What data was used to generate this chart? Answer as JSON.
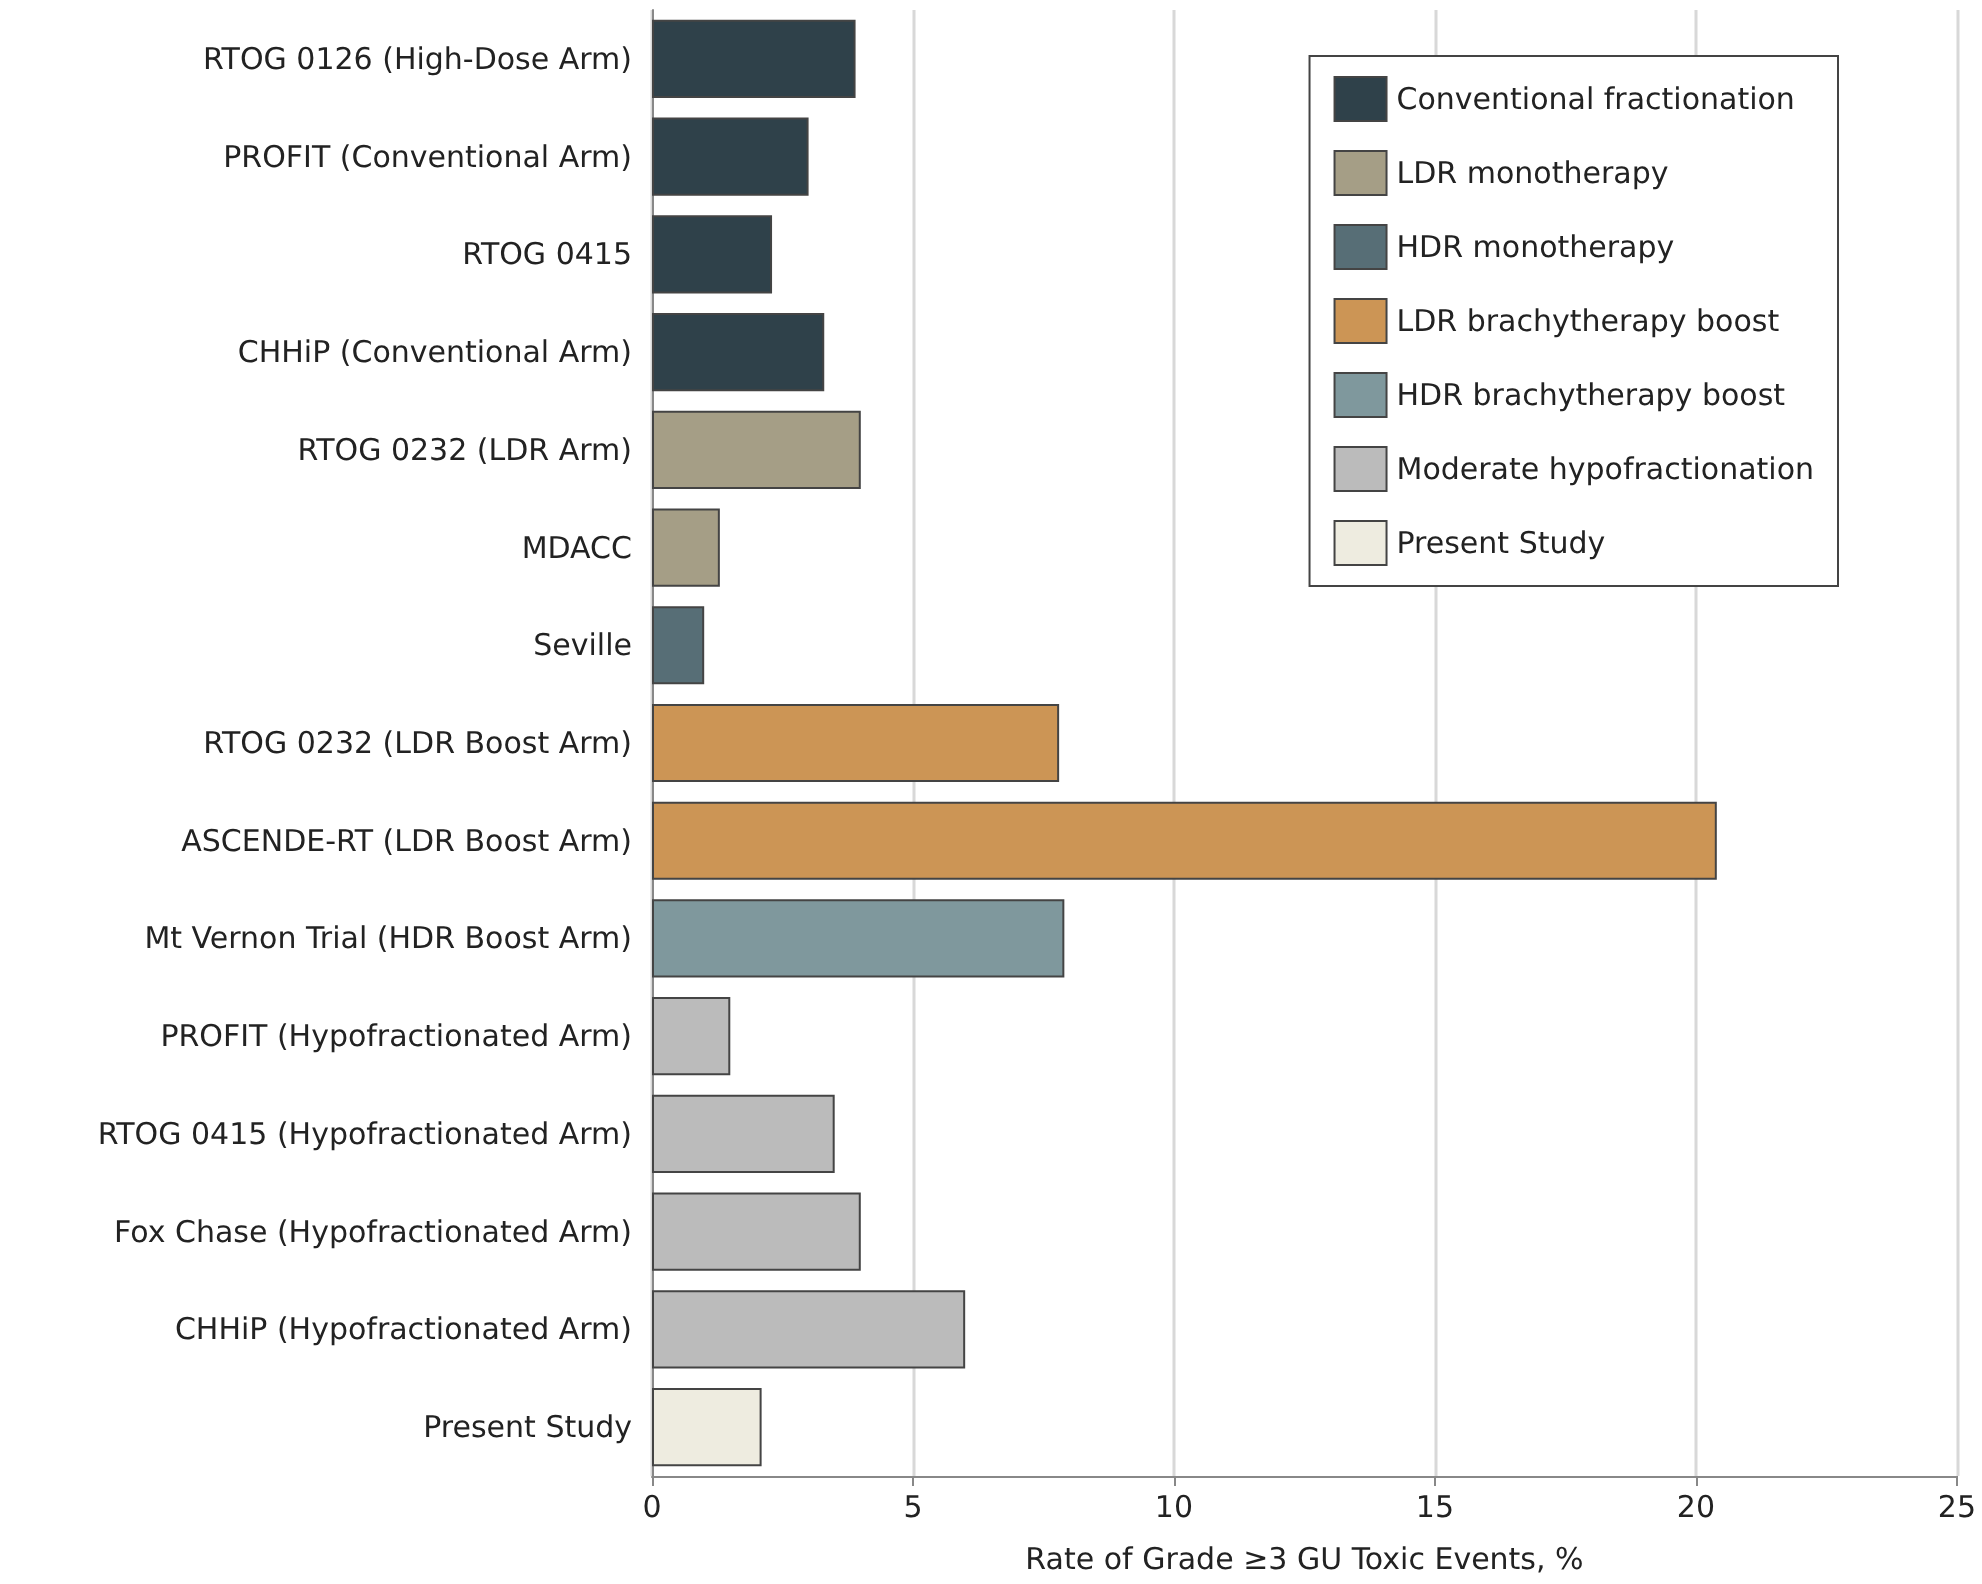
{
  "chart_data": {
    "type": "bar",
    "orientation": "horizontal",
    "xlabel": "Rate of Grade ≥3 GU Toxic Events, %",
    "categories": [
      "RTOG 0126 (High-Dose Arm)",
      "PROFIT (Conventional Arm)",
      "RTOG 0415",
      "CHHiP (Conventional Arm)",
      "RTOG 0232 (LDR Arm)",
      "MDACC",
      "Seville",
      "RTOG 0232 (LDR Boost Arm)",
      "ASCENDE-RT (LDR Boost Arm)",
      "Mt Vernon Trial (HDR Boost Arm)",
      "PROFIT (Hypofractionated Arm)",
      "RTOG 0415 (Hypofractionated Arm)",
      "Fox Chase (Hypofractionated Arm)",
      "CHHiP (Hypofractionated Arm)",
      "Present Study"
    ],
    "series": [
      {
        "name": "Conventional fractionation",
        "color": "#2f414a",
        "values": [
          3.9,
          3.0,
          2.3,
          3.3,
          null,
          null,
          null,
          null,
          null,
          null,
          null,
          null,
          null,
          null,
          null
        ]
      },
      {
        "name": "LDR monotherapy",
        "color": "#a59e86",
        "values": [
          null,
          null,
          null,
          null,
          4.0,
          1.3,
          null,
          null,
          null,
          null,
          null,
          null,
          null,
          null,
          null
        ]
      },
      {
        "name": "HDR monotherapy",
        "color": "#576e76",
        "values": [
          null,
          null,
          null,
          null,
          null,
          null,
          1.0,
          null,
          null,
          null,
          null,
          null,
          null,
          null,
          null
        ]
      },
      {
        "name": "LDR brachytherapy boost",
        "color": "#cc9555",
        "values": [
          null,
          null,
          null,
          null,
          null,
          null,
          null,
          7.8,
          20.4,
          null,
          null,
          null,
          null,
          null,
          null
        ]
      },
      {
        "name": "HDR brachytherapy boost",
        "color": "#7f989d",
        "values": [
          null,
          null,
          null,
          null,
          null,
          null,
          null,
          null,
          null,
          7.9,
          null,
          null,
          null,
          null,
          null
        ]
      },
      {
        "name": "Moderate hypofractionation",
        "color": "#bbbbbb",
        "values": [
          null,
          null,
          null,
          null,
          null,
          null,
          null,
          null,
          null,
          null,
          1.5,
          3.5,
          4.0,
          6.0,
          null
        ]
      },
      {
        "name": "Present Study",
        "color": "#eeece0",
        "values": [
          null,
          null,
          null,
          null,
          null,
          null,
          null,
          null,
          null,
          null,
          null,
          null,
          null,
          null,
          2.1
        ]
      }
    ],
    "xlim": [
      0,
      25
    ],
    "xticks": [
      0,
      5,
      10,
      15,
      20,
      25
    ],
    "grid": "x",
    "legend": "top right"
  }
}
